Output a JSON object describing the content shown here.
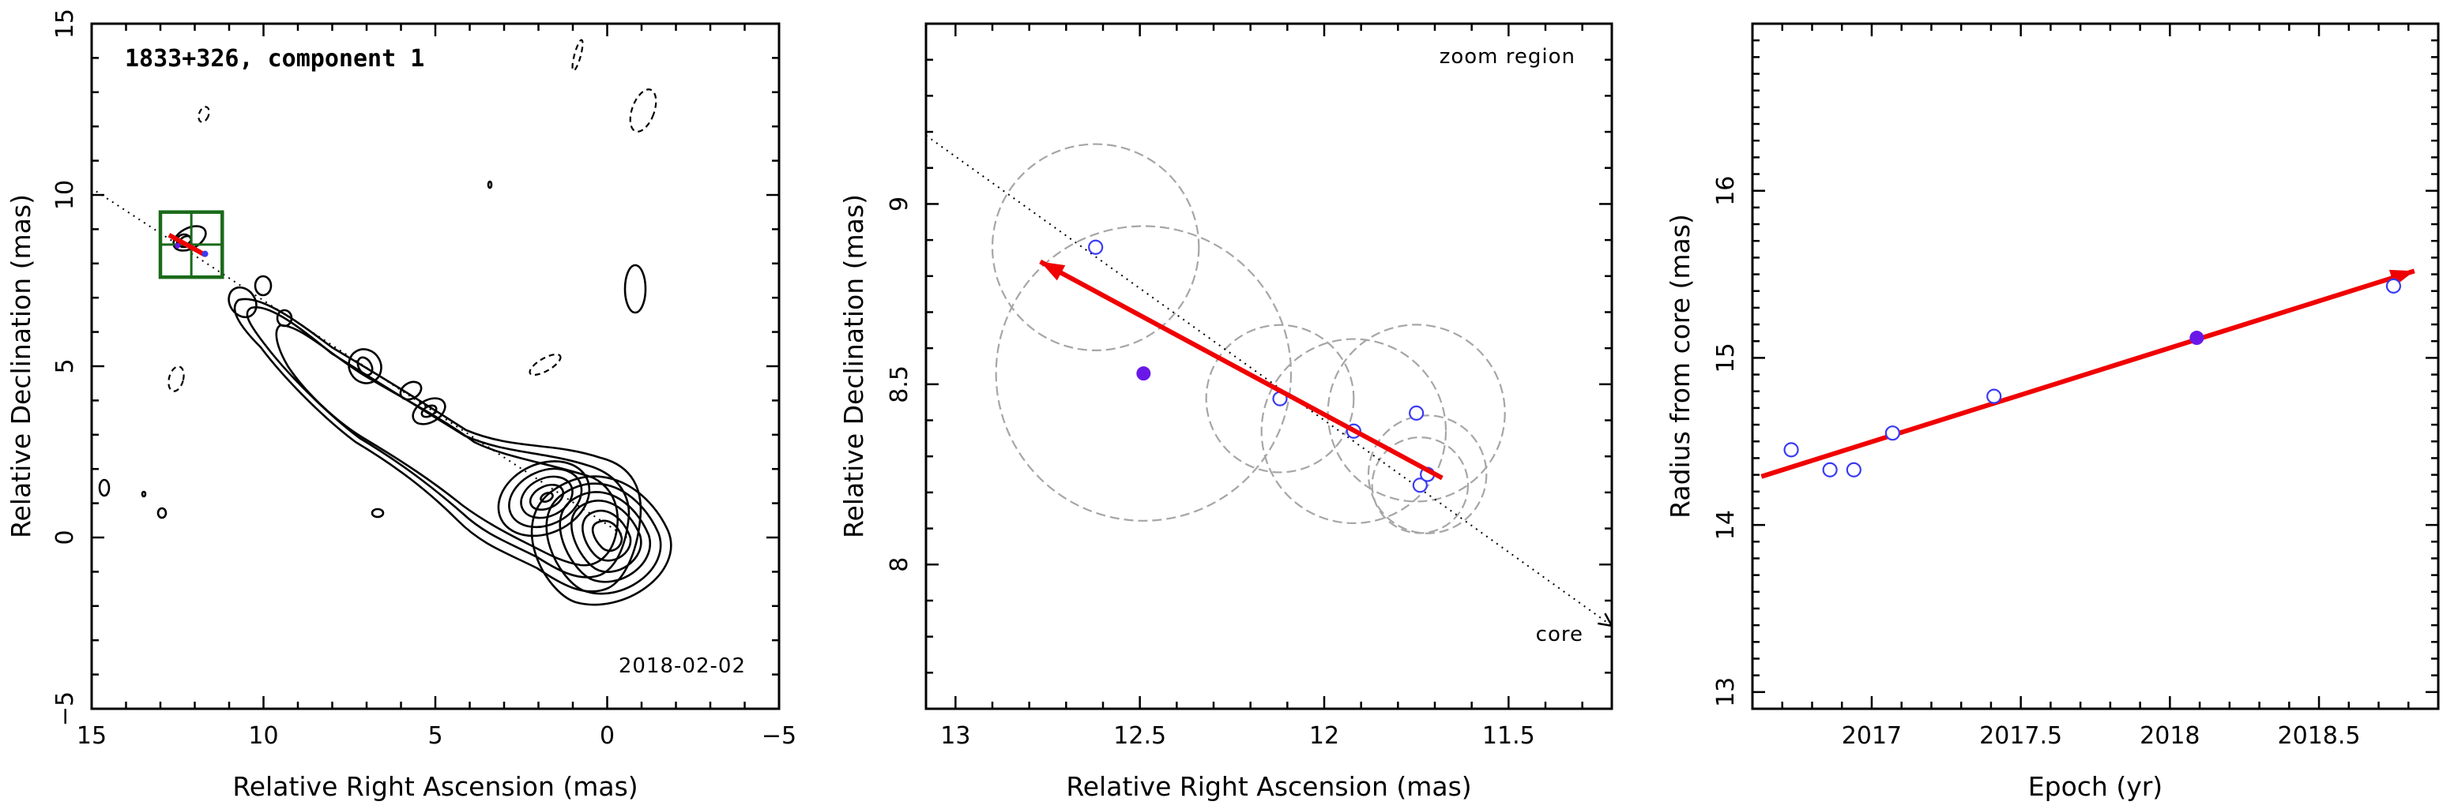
{
  "colors": {
    "velocity_arrow": "#f00000",
    "observed_marker": "#3a3af5",
    "predicted_marker": "#6a18e8",
    "uncertainty_circle": "#a6a6a6",
    "zoom_box": "#1a6a1a"
  },
  "chart_data": [
    {
      "type": "contour",
      "panel": "left",
      "title": "1833+326, component 1",
      "date_label": "2018-02-02",
      "xlabel": "Relative Right Ascension (mas)",
      "ylabel": "Relative Declination (mas)",
      "xlim": [
        15,
        -5
      ],
      "ylim": [
        -5,
        15
      ],
      "xticks": [
        15,
        10,
        5,
        0,
        -5
      ],
      "yticks": [
        -5,
        0,
        5,
        10,
        15
      ],
      "zoom_box": {
        "ra": [
          13.0,
          11.2
        ],
        "dec": [
          7.6,
          9.5
        ]
      },
      "velocity_arrow": {
        "from": [
          11.7,
          8.25
        ],
        "to": [
          12.75,
          8.83
        ]
      },
      "predicted_position": [
        12.5,
        8.52
      ],
      "direction_line": {
        "from": [
          15.5,
          10.8
        ],
        "to": [
          -0.5,
          -0.2
        ]
      }
    },
    {
      "type": "scatter",
      "panel": "middle",
      "xlabel": "Relative Right Ascension (mas)",
      "ylabel": "Relative Declination (mas)",
      "annotations": [
        "zoom region",
        "core"
      ],
      "xlim": [
        13.08,
        11.22
      ],
      "ylim": [
        7.6,
        9.5
      ],
      "xticks": [
        13,
        12.5,
        12,
        11.5
      ],
      "yticks": [
        8,
        8.5,
        9
      ],
      "observed_positions": [
        {
          "ra": 12.62,
          "dec": 8.88,
          "radius": 0.28
        },
        {
          "ra": 12.12,
          "dec": 8.46,
          "radius": 0.2
        },
        {
          "ra": 11.92,
          "dec": 8.37,
          "radius": 0.25
        },
        {
          "ra": 11.75,
          "dec": 8.42,
          "radius": 0.24
        },
        {
          "ra": 11.74,
          "dec": 8.22,
          "radius": 0.13
        },
        {
          "ra": 11.72,
          "dec": 8.25,
          "radius": 0.16
        }
      ],
      "predicted_position": {
        "ra": 12.49,
        "dec": 8.53,
        "radius": 0.4
      },
      "velocity_arrow": {
        "from": [
          11.68,
          8.24
        ],
        "to": [
          12.77,
          8.84
        ]
      },
      "direction_line": {
        "from": [
          13.08,
          9.19
        ],
        "to": [
          11.22,
          7.83
        ]
      }
    },
    {
      "type": "scatter",
      "panel": "right",
      "xlabel": "Epoch (yr)",
      "ylabel": "Radius from core (mas)",
      "xlim": [
        16.6,
        18.9
      ],
      "ylim": [
        12.9,
        17.0
      ],
      "xlim_labels": [
        2016.6,
        2018.9
      ],
      "xticks": [
        2017,
        2017.5,
        2018,
        2018.5
      ],
      "yticks": [
        13,
        14,
        15,
        16
      ],
      "observed": [
        {
          "x": 2016.73,
          "y": 14.45
        },
        {
          "x": 2016.86,
          "y": 14.33
        },
        {
          "x": 2016.94,
          "y": 14.33
        },
        {
          "x": 2017.07,
          "y": 14.55
        },
        {
          "x": 2017.41,
          "y": 14.77
        },
        {
          "x": 2018.75,
          "y": 15.43
        }
      ],
      "predicted": [
        {
          "x": 2018.09,
          "y": 15.12
        }
      ],
      "fit_line": {
        "from": [
          2016.63,
          14.29
        ],
        "to": [
          2018.82,
          15.52
        ]
      }
    }
  ]
}
